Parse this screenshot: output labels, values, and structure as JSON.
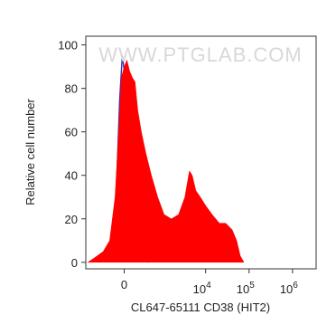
{
  "chart_data": {
    "type": "histogram-area",
    "watermark": "WWW.PTGLAB.COM",
    "xlabel": "CL647-65111 CD38 (HIT2)",
    "ylabel": "Relative cell number",
    "x_scale": "biexponential",
    "xlim": [
      -1000,
      3500000
    ],
    "ylim": [
      -3,
      104
    ],
    "xticks": [
      0,
      {
        "value": 10000,
        "label": "10",
        "exponent": "4"
      },
      {
        "value": 100000,
        "label": "10",
        "exponent": "5"
      },
      {
        "value": 1000000,
        "label": "10",
        "exponent": "6"
      }
    ],
    "yticks": [
      0,
      20,
      40,
      60,
      80,
      100
    ],
    "series": [
      {
        "color": "#ff0000",
        "fill": true,
        "x": [
          -891,
          -620,
          -359,
          -225,
          -133,
          -78,
          -39,
          0,
          39,
          78,
          119,
          162,
          209,
          278,
          380,
          530,
          765,
          1088,
          1609,
          2375,
          3325,
          4230,
          4894,
          5932,
          7528,
          10055,
          14098,
          20721,
          29021,
          40618,
          51604,
          62723,
          76023
        ],
        "values": [
          0,
          2,
          5,
          10,
          30,
          60,
          85,
          90,
          93,
          88,
          85,
          83,
          70,
          60,
          50,
          40,
          30,
          22,
          20,
          22,
          30,
          42,
          40,
          33,
          30,
          26,
          22,
          18,
          18,
          15,
          10,
          3,
          0
        ]
      },
      {
        "color": "#3333bb",
        "fill": false,
        "x": [
          -260,
          -162,
          -105,
          -64,
          -26,
          13,
          51,
          91,
          147,
          242,
          450
        ],
        "values": [
          0,
          10,
          40,
          75,
          95,
          85,
          60,
          30,
          10,
          3,
          0
        ]
      }
    ]
  }
}
